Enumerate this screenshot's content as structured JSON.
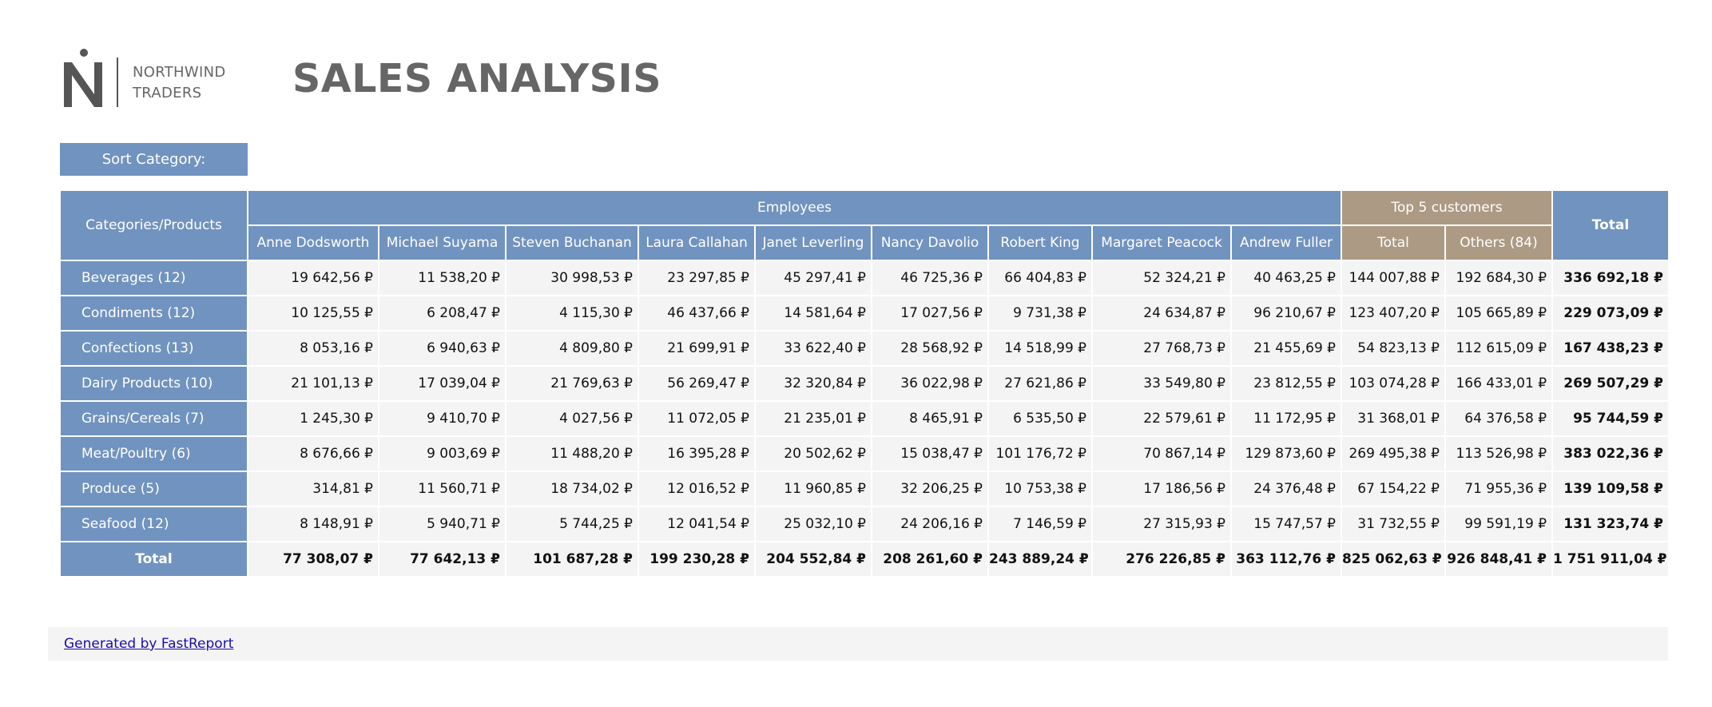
{
  "brand": {
    "line1": "NORTHWIND",
    "line2": "TRADERS"
  },
  "title": "SALES ANALYSIS",
  "sort_button": "Sort Category:",
  "header": {
    "corner": "Categories/Products",
    "employees_group": "Employees",
    "top5_group": "Top 5 customers",
    "total": "Total",
    "employees": [
      "Anne Dodsworth",
      "Michael Suyama",
      "Steven Buchanan",
      "Laura Callahan",
      "Janet Leverling",
      "Nancy Davolio",
      "Robert King",
      "Margaret Peacock",
      "Andrew Fuller"
    ],
    "top5_cols": [
      "Total",
      "Others (84)"
    ]
  },
  "rows": [
    {
      "label": "Beverages (12)",
      "values": [
        "19 642,56 ₽",
        "11 538,20 ₽",
        "30 998,53 ₽",
        "23 297,85 ₽",
        "45 297,41 ₽",
        "46 725,36 ₽",
        "66 404,83 ₽",
        "52 324,21 ₽",
        "40 463,25 ₽",
        "144 007,88 ₽",
        "192 684,30 ₽"
      ],
      "total": "336 692,18 ₽"
    },
    {
      "label": "Condiments (12)",
      "values": [
        "10 125,55 ₽",
        "6 208,47 ₽",
        "4 115,30 ₽",
        "46 437,66 ₽",
        "14 581,64 ₽",
        "17 027,56 ₽",
        "9 731,38 ₽",
        "24 634,87 ₽",
        "96 210,67 ₽",
        "123 407,20 ₽",
        "105 665,89 ₽"
      ],
      "total": "229 073,09 ₽"
    },
    {
      "label": "Confections (13)",
      "values": [
        "8 053,16 ₽",
        "6 940,63 ₽",
        "4 809,80 ₽",
        "21 699,91 ₽",
        "33 622,40 ₽",
        "28 568,92 ₽",
        "14 518,99 ₽",
        "27 768,73 ₽",
        "21 455,69 ₽",
        "54 823,13 ₽",
        "112 615,09 ₽"
      ],
      "total": "167 438,23 ₽"
    },
    {
      "label": "Dairy Products (10)",
      "values": [
        "21 101,13 ₽",
        "17 039,04 ₽",
        "21 769,63 ₽",
        "56 269,47 ₽",
        "32 320,84 ₽",
        "36 022,98 ₽",
        "27 621,86 ₽",
        "33 549,80 ₽",
        "23 812,55 ₽",
        "103 074,28 ₽",
        "166 433,01 ₽"
      ],
      "total": "269 507,29 ₽"
    },
    {
      "label": "Grains/Cereals (7)",
      "values": [
        "1 245,30 ₽",
        "9 410,70 ₽",
        "4 027,56 ₽",
        "11 072,05 ₽",
        "21 235,01 ₽",
        "8 465,91 ₽",
        "6 535,50 ₽",
        "22 579,61 ₽",
        "11 172,95 ₽",
        "31 368,01 ₽",
        "64 376,58 ₽"
      ],
      "total": "95 744,59 ₽"
    },
    {
      "label": "Meat/Poultry (6)",
      "values": [
        "8 676,66 ₽",
        "9 003,69 ₽",
        "11 488,20 ₽",
        "16 395,28 ₽",
        "20 502,62 ₽",
        "15 038,47 ₽",
        "101 176,72 ₽",
        "70 867,14 ₽",
        "129 873,60 ₽",
        "269 495,38 ₽",
        "113 526,98 ₽"
      ],
      "total": "383 022,36 ₽"
    },
    {
      "label": "Produce (5)",
      "values": [
        "314,81 ₽",
        "11 560,71 ₽",
        "18 734,02 ₽",
        "12 016,52 ₽",
        "11 960,85 ₽",
        "32 206,25 ₽",
        "10 753,38 ₽",
        "17 186,56 ₽",
        "24 376,48 ₽",
        "67 154,22 ₽",
        "71 955,36 ₽"
      ],
      "total": "139 109,58 ₽"
    },
    {
      "label": "Seafood (12)",
      "values": [
        "8 148,91 ₽",
        "5 940,71 ₽",
        "5 744,25 ₽",
        "12 041,54 ₽",
        "25 032,10 ₽",
        "24 206,16 ₽",
        "7 146,59 ₽",
        "27 315,93 ₽",
        "15 747,57 ₽",
        "31 732,55 ₽",
        "99 591,19 ₽"
      ],
      "total": "131 323,74 ₽"
    }
  ],
  "totals": {
    "label": "Total",
    "values": [
      "77 308,07 ₽",
      "77 642,13 ₽",
      "101 687,28 ₽",
      "199 230,28 ₽",
      "204 552,84 ₽",
      "208 261,60 ₽",
      "243 889,24 ₽",
      "276 226,85 ₽",
      "363 112,76 ₽",
      "825 062,63 ₽",
      "926 848,41 ₽"
    ],
    "grand": "1 751 911,04 ₽"
  },
  "footer": {
    "link_text": "Generated by FastReport"
  },
  "colors": {
    "header_blue": "#7193bf",
    "header_tan": "#ad9a84",
    "cell_bg": "#f4f4f4",
    "title_grey": "#666666"
  }
}
